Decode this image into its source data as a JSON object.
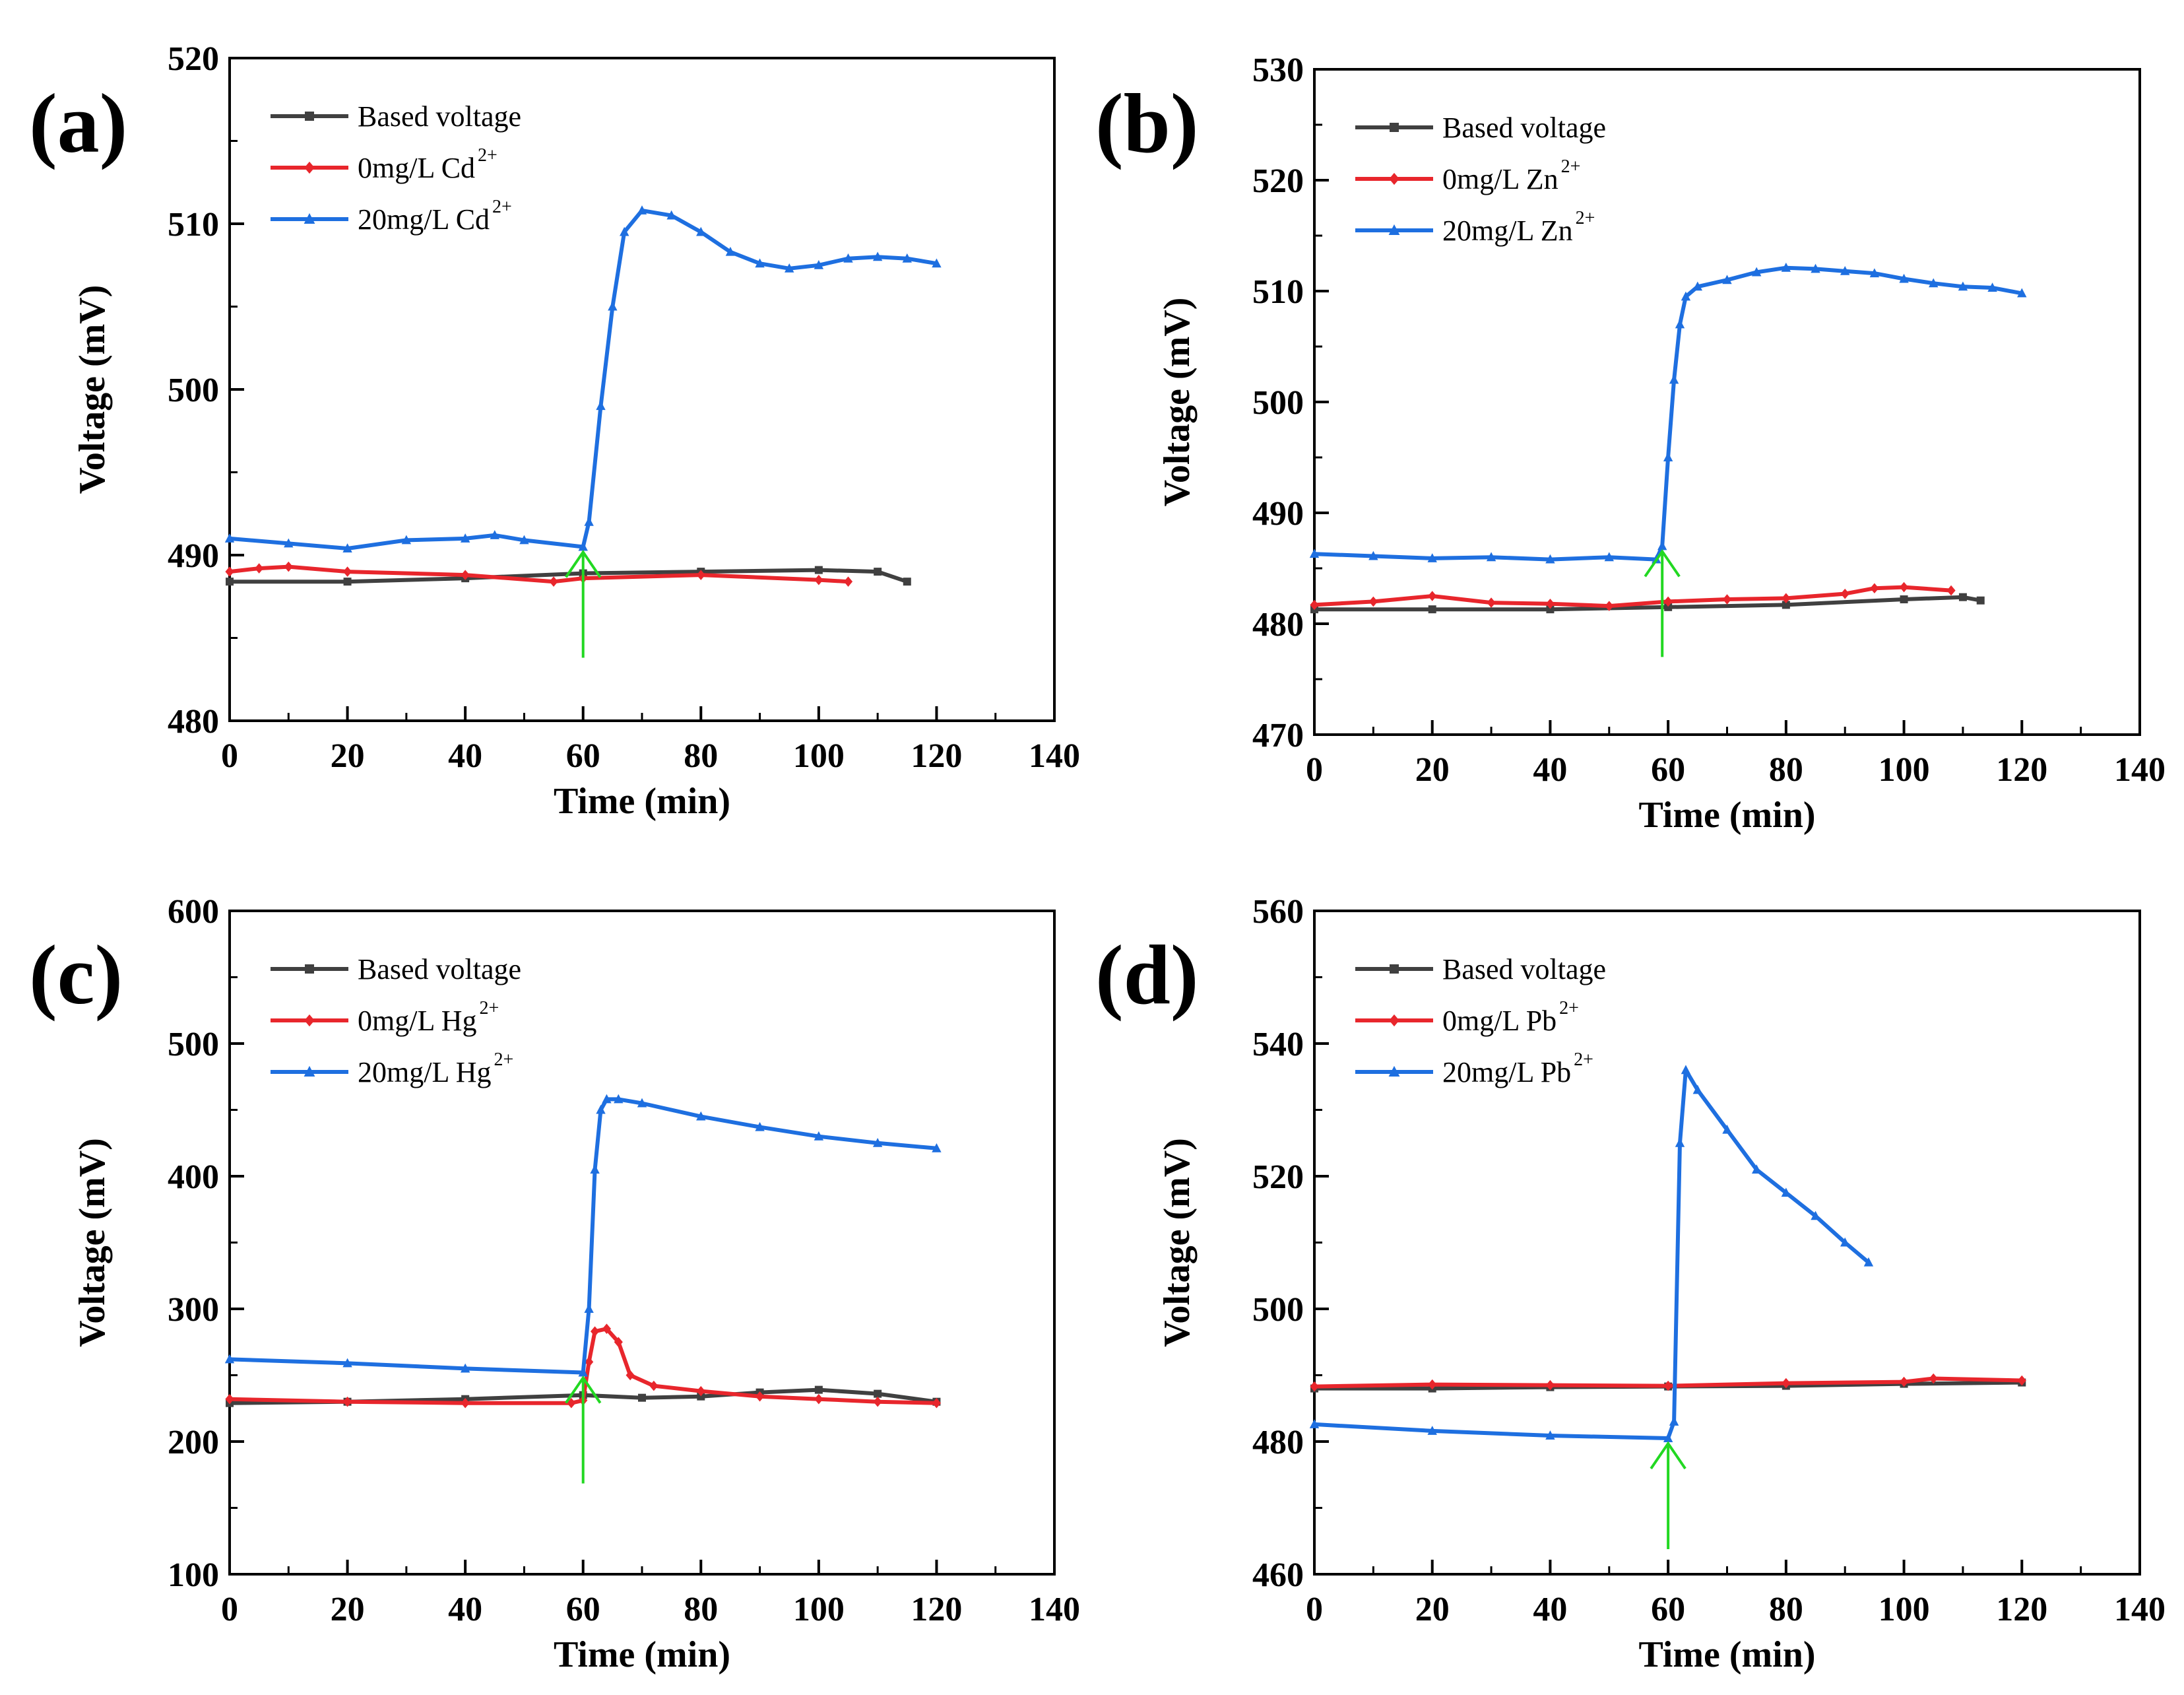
{
  "chart_data": [
    {
      "type": "line",
      "panel_label": "(a)",
      "xlabel": "Time (min)",
      "ylabel": "Voltage (mV)",
      "xlim": [
        0,
        140
      ],
      "ylim": [
        480,
        520
      ],
      "xticks": [
        0,
        20,
        40,
        60,
        80,
        100,
        120,
        140
      ],
      "yticks": [
        480,
        490,
        500,
        510,
        520
      ],
      "legend": {
        "position": "top-left"
      },
      "arrow": {
        "x": 60
      },
      "series": [
        {
          "name": "Based voltage",
          "color": "#404040",
          "marker": "square",
          "label": "Based voltage",
          "sup": "",
          "points": [
            [
              0,
              488.4
            ],
            [
              20,
              488.4
            ],
            [
              40,
              488.6
            ],
            [
              60,
              488.9
            ],
            [
              80,
              489.0
            ],
            [
              100,
              489.1
            ],
            [
              110,
              489.0
            ],
            [
              115,
              488.4
            ]
          ]
        },
        {
          "name": "0mg/L Cd2+",
          "color": "#e8262c",
          "marker": "diamond",
          "label": "0mg/L Cd",
          "sup": "2+",
          "points": [
            [
              0,
              489.0
            ],
            [
              5,
              489.2
            ],
            [
              10,
              489.3
            ],
            [
              20,
              489.0
            ],
            [
              40,
              488.8
            ],
            [
              55,
              488.4
            ],
            [
              60,
              488.6
            ],
            [
              80,
              488.8
            ],
            [
              100,
              488.5
            ],
            [
              105,
              488.4
            ]
          ]
        },
        {
          "name": "20mg/L Cd2+",
          "color": "#1e6fe0",
          "marker": "triangle",
          "label": "20mg/L Cd",
          "sup": "2+",
          "points": [
            [
              0,
              491.0
            ],
            [
              10,
              490.7
            ],
            [
              20,
              490.4
            ],
            [
              30,
              490.9
            ],
            [
              40,
              491.0
            ],
            [
              45,
              491.2
            ],
            [
              50,
              490.9
            ],
            [
              60,
              490.5
            ],
            [
              61,
              492.0
            ],
            [
              63,
              499.0
            ],
            [
              65,
              505.0
            ],
            [
              67,
              509.5
            ],
            [
              70,
              510.8
            ],
            [
              75,
              510.5
            ],
            [
              80,
              509.5
            ],
            [
              85,
              508.3
            ],
            [
              90,
              507.6
            ],
            [
              95,
              507.3
            ],
            [
              100,
              507.5
            ],
            [
              105,
              507.9
            ],
            [
              110,
              508.0
            ],
            [
              115,
              507.9
            ],
            [
              120,
              507.6
            ]
          ]
        }
      ]
    },
    {
      "type": "line",
      "panel_label": "(b)",
      "xlabel": "Time (min)",
      "ylabel": "Voltage (mV)",
      "xlim": [
        0,
        140
      ],
      "ylim": [
        470,
        530
      ],
      "xticks": [
        0,
        20,
        40,
        60,
        80,
        100,
        120,
        140
      ],
      "yticks": [
        470,
        480,
        490,
        500,
        510,
        520,
        530
      ],
      "legend": {
        "position": "top-left"
      },
      "arrow": {
        "x": 59
      },
      "series": [
        {
          "name": "Based voltage",
          "color": "#404040",
          "marker": "square",
          "label": "Based voltage",
          "sup": "",
          "points": [
            [
              0,
              481.3
            ],
            [
              20,
              481.3
            ],
            [
              40,
              481.3
            ],
            [
              60,
              481.5
            ],
            [
              80,
              481.7
            ],
            [
              100,
              482.2
            ],
            [
              110,
              482.4
            ],
            [
              113,
              482.1
            ]
          ]
        },
        {
          "name": "0mg/L Zn2+",
          "color": "#e8262c",
          "marker": "diamond",
          "label": "0mg/L Zn",
          "sup": "2+",
          "points": [
            [
              0,
              481.7
            ],
            [
              10,
              482.0
            ],
            [
              20,
              482.5
            ],
            [
              30,
              481.9
            ],
            [
              40,
              481.8
            ],
            [
              50,
              481.6
            ],
            [
              60,
              482.0
            ],
            [
              70,
              482.2
            ],
            [
              80,
              482.3
            ],
            [
              90,
              482.7
            ],
            [
              95,
              483.2
            ],
            [
              100,
              483.3
            ],
            [
              108,
              483.0
            ]
          ]
        },
        {
          "name": "20mg/L Zn2+",
          "color": "#1e6fe0",
          "marker": "triangle",
          "label": "20mg/L Zn",
          "sup": "2+",
          "points": [
            [
              0,
              486.3
            ],
            [
              10,
              486.1
            ],
            [
              20,
              485.9
            ],
            [
              30,
              486.0
            ],
            [
              40,
              485.8
            ],
            [
              50,
              486.0
            ],
            [
              58,
              485.8
            ],
            [
              59,
              487.0
            ],
            [
              60,
              495.0
            ],
            [
              61,
              502.0
            ],
            [
              62,
              507.0
            ],
            [
              63,
              509.5
            ],
            [
              65,
              510.4
            ],
            [
              70,
              511.0
            ],
            [
              75,
              511.7
            ],
            [
              80,
              512.1
            ],
            [
              85,
              512.0
            ],
            [
              90,
              511.8
            ],
            [
              95,
              511.6
            ],
            [
              100,
              511.1
            ],
            [
              105,
              510.7
            ],
            [
              110,
              510.4
            ],
            [
              115,
              510.3
            ],
            [
              120,
              509.8
            ]
          ]
        }
      ]
    },
    {
      "type": "line",
      "panel_label": "(c)",
      "xlabel": "Time (min)",
      "ylabel": "Voltage (mV)",
      "xlim": [
        0,
        140
      ],
      "ylim": [
        100,
        600
      ],
      "xticks": [
        0,
        20,
        40,
        60,
        80,
        100,
        120,
        140
      ],
      "yticks": [
        100,
        200,
        300,
        400,
        500,
        600
      ],
      "legend": {
        "position": "top-left"
      },
      "arrow": {
        "x": 60
      },
      "series": [
        {
          "name": "Based voltage",
          "color": "#404040",
          "marker": "square",
          "label": "Based voltage",
          "sup": "",
          "points": [
            [
              0,
              229
            ],
            [
              20,
              230
            ],
            [
              40,
              232
            ],
            [
              60,
              235
            ],
            [
              70,
              233
            ],
            [
              80,
              234
            ],
            [
              90,
              237
            ],
            [
              100,
              239
            ],
            [
              110,
              236
            ],
            [
              120,
              230
            ]
          ]
        },
        {
          "name": "0mg/L Hg2+",
          "color": "#e8262c",
          "marker": "diamond",
          "label": "0mg/L Hg",
          "sup": "2+",
          "points": [
            [
              0,
              232
            ],
            [
              20,
              230
            ],
            [
              40,
              229
            ],
            [
              58,
              229
            ],
            [
              60,
              231
            ],
            [
              61,
              260
            ],
            [
              62,
              283
            ],
            [
              64,
              285
            ],
            [
              66,
              275
            ],
            [
              68,
              250
            ],
            [
              72,
              242
            ],
            [
              80,
              238
            ],
            [
              90,
              234
            ],
            [
              100,
              232
            ],
            [
              110,
              230
            ],
            [
              120,
              229
            ]
          ]
        },
        {
          "name": "20mg/L Hg2+",
          "color": "#1e6fe0",
          "marker": "triangle",
          "label": "20mg/L Hg",
          "sup": "2+",
          "points": [
            [
              0,
              262
            ],
            [
              20,
              259
            ],
            [
              40,
              255
            ],
            [
              60,
              252
            ],
            [
              61,
              300
            ],
            [
              62,
              405
            ],
            [
              63,
              450
            ],
            [
              64,
              458
            ],
            [
              66,
              458
            ],
            [
              70,
              455
            ],
            [
              80,
              445
            ],
            [
              90,
              437
            ],
            [
              100,
              430
            ],
            [
              110,
              425
            ],
            [
              120,
              421
            ]
          ]
        }
      ]
    },
    {
      "type": "line",
      "panel_label": "(d)",
      "xlabel": "Time (min)",
      "ylabel": "Voltage (mV)",
      "xlim": [
        0,
        140
      ],
      "ylim": [
        460,
        560
      ],
      "xticks": [
        0,
        20,
        40,
        60,
        80,
        100,
        120,
        140
      ],
      "yticks": [
        460,
        480,
        500,
        520,
        540,
        560
      ],
      "legend": {
        "position": "top-left"
      },
      "arrow": {
        "x": 60
      },
      "series": [
        {
          "name": "Based voltage",
          "color": "#404040",
          "marker": "square",
          "label": "Based voltage",
          "sup": "",
          "points": [
            [
              0,
              488.0
            ],
            [
              20,
              488.0
            ],
            [
              40,
              488.2
            ],
            [
              60,
              488.3
            ],
            [
              80,
              488.4
            ],
            [
              100,
              488.7
            ],
            [
              120,
              488.9
            ]
          ]
        },
        {
          "name": "0mg/L Pb2+",
          "color": "#e8262c",
          "marker": "diamond",
          "label": "0mg/L Pb",
          "sup": "2+",
          "points": [
            [
              0,
              488.3
            ],
            [
              20,
              488.6
            ],
            [
              40,
              488.5
            ],
            [
              60,
              488.4
            ],
            [
              80,
              488.8
            ],
            [
              100,
              489.0
            ],
            [
              105,
              489.5
            ],
            [
              120,
              489.2
            ]
          ]
        },
        {
          "name": "20mg/L Pb2+",
          "color": "#1e6fe0",
          "marker": "triangle",
          "label": "20mg/L Pb",
          "sup": "2+",
          "points": [
            [
              0,
              482.6
            ],
            [
              20,
              481.6
            ],
            [
              40,
              480.9
            ],
            [
              60,
              480.5
            ],
            [
              61,
              483.0
            ],
            [
              62,
              525.0
            ],
            [
              63,
              536.0
            ],
            [
              65,
              533.0
            ],
            [
              70,
              527.0
            ],
            [
              75,
              521.0
            ],
            [
              80,
              517.5
            ],
            [
              85,
              514.0
            ],
            [
              90,
              510.0
            ],
            [
              94,
              507.0
            ]
          ]
        }
      ]
    }
  ]
}
